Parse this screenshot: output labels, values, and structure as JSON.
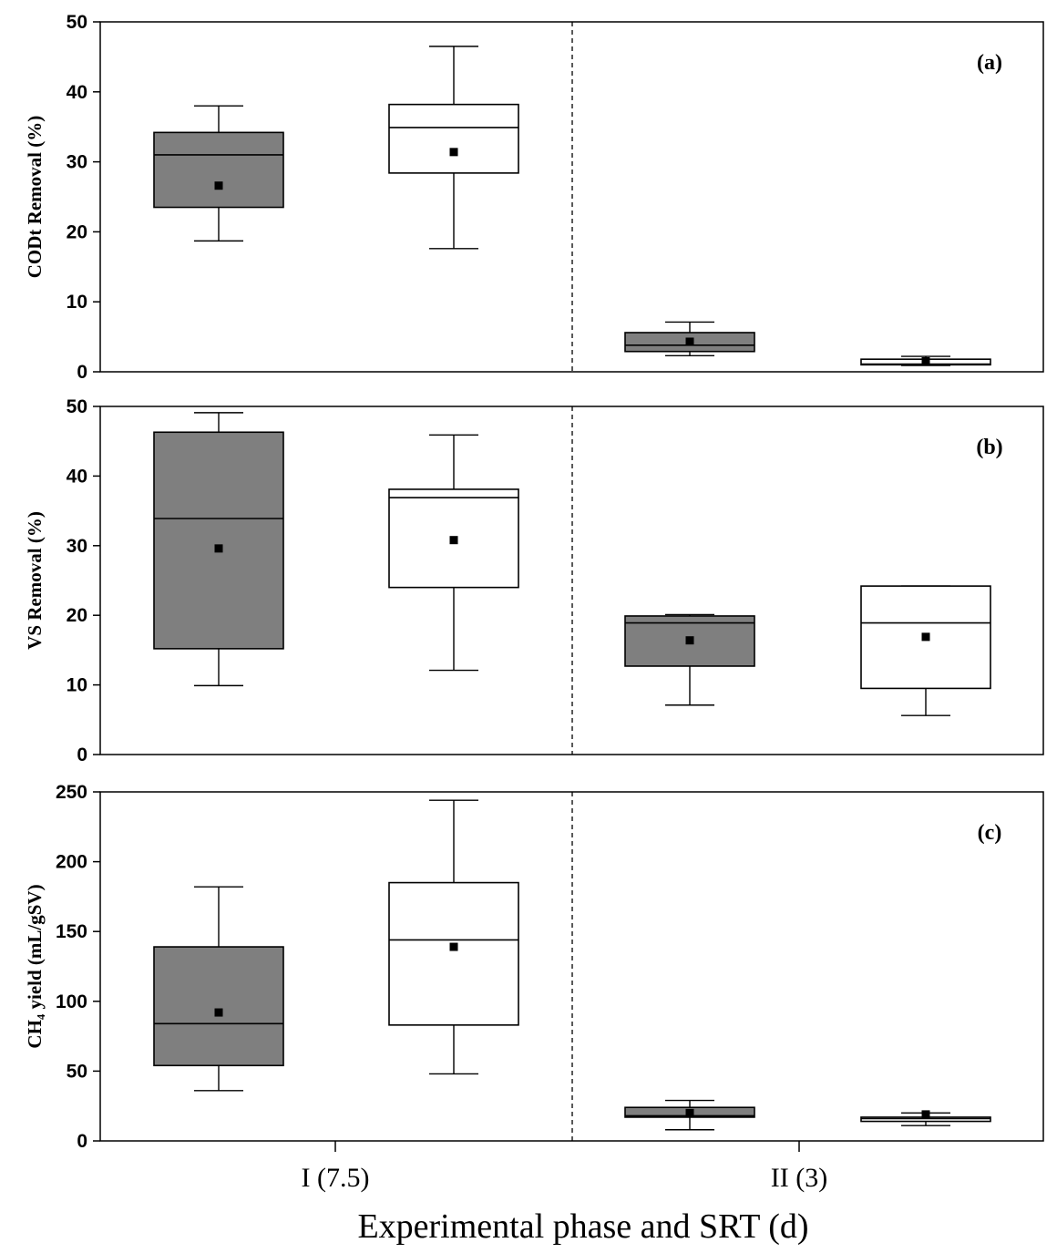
{
  "chart_data": {
    "type": "box",
    "xlabel": "Experimental phase and SRT (d)",
    "categories": [
      "I (7.5)",
      "II (3)"
    ],
    "series_colors": {
      "dark": "#7f7f7f",
      "light": "#ffffff"
    },
    "panels": [
      {
        "label": "(a)",
        "ylabel": "CODt Removal (%)",
        "ylim": [
          0,
          50
        ],
        "yticks": [
          0,
          10,
          20,
          30,
          40,
          50
        ],
        "boxes": [
          {
            "category": "I (7.5)",
            "fill": "dark",
            "min": 18.7,
            "q1": 23.5,
            "median": 31.0,
            "q3": 34.2,
            "max": 38.0,
            "mean": 26.6
          },
          {
            "category": "I (7.5)",
            "fill": "light",
            "min": 17.6,
            "q1": 28.4,
            "median": 34.9,
            "q3": 38.2,
            "max": 46.5,
            "mean": 31.4
          },
          {
            "category": "II (3)",
            "fill": "dark",
            "min": 2.3,
            "q1": 2.9,
            "median": 3.8,
            "q3": 5.6,
            "max": 7.1,
            "mean": 4.3
          },
          {
            "category": "II (3)",
            "fill": "light",
            "min": 0.9,
            "q1": 1.0,
            "median": 1.1,
            "q3": 1.8,
            "max": 2.2,
            "mean": 1.5
          }
        ]
      },
      {
        "label": "(b)",
        "ylabel": "VS Removal (%)",
        "ylim": [
          0,
          50
        ],
        "yticks": [
          0,
          10,
          20,
          30,
          40,
          50
        ],
        "boxes": [
          {
            "category": "I (7.5)",
            "fill": "dark",
            "min": 9.9,
            "q1": 15.2,
            "median": 33.9,
            "q3": 46.3,
            "max": 49.1,
            "mean": 29.6
          },
          {
            "category": "I (7.5)",
            "fill": "light",
            "min": 12.1,
            "q1": 24.0,
            "median": 36.9,
            "q3": 38.1,
            "max": 45.9,
            "mean": 30.8
          },
          {
            "category": "II (3)",
            "fill": "dark",
            "min": 7.1,
            "q1": 12.7,
            "median": 18.9,
            "q3": 19.9,
            "max": 20.1,
            "mean": 16.4
          },
          {
            "category": "II (3)",
            "fill": "light",
            "min": 5.6,
            "q1": 9.5,
            "median": 18.9,
            "q3": 24.2,
            "max": 24.2,
            "mean": 16.9
          }
        ]
      },
      {
        "label": "(c)",
        "ylabel": "CH₄ yield (mL/gSV)",
        "ylim": [
          0,
          250
        ],
        "yticks": [
          0,
          50,
          100,
          150,
          200,
          250
        ],
        "boxes": [
          {
            "category": "I (7.5)",
            "fill": "dark",
            "min": 36,
            "q1": 54,
            "median": 84,
            "q3": 139,
            "max": 182,
            "mean": 92
          },
          {
            "category": "I (7.5)",
            "fill": "light",
            "min": 48,
            "q1": 83,
            "median": 144,
            "q3": 185,
            "max": 244,
            "mean": 139
          },
          {
            "category": "II (3)",
            "fill": "dark",
            "min": 8,
            "q1": 17,
            "median": 18,
            "q3": 24,
            "max": 29,
            "mean": 20
          },
          {
            "category": "II (3)",
            "fill": "light",
            "min": 11,
            "q1": 14,
            "median": 16,
            "q3": 17,
            "max": 20,
            "mean": 19
          }
        ]
      }
    ]
  }
}
